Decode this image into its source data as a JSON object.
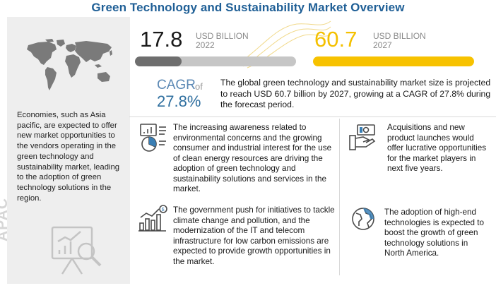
{
  "title": "Green Technology and Sustainability Market Overview",
  "left_panel": {
    "region_text": "Economies, such as Asia pacific, are expected to offer new market opportunities to the vendors operating in the green technology and sustainability market, leading to the adoption of green technology solutions in the region.",
    "region_label": "APAC"
  },
  "stats": {
    "y2022": {
      "value": "17.8",
      "unit": "USD BILLION",
      "year": "2022",
      "fill_percent": 29
    },
    "y2027": {
      "value": "60.7",
      "unit": "USD BILLION",
      "year": "2027",
      "fill_percent": 100
    }
  },
  "cagr": {
    "label": "CAGR",
    "of": "of",
    "value": "27.8%",
    "description": "The global green technology and sustainability market size is projected to reach USD 60.7 billion by 2027, growing at a CAGR of 27.8% during the forecast period."
  },
  "drivers": [
    {
      "icon": "analytics-icon",
      "text": "The increasing awareness related to environmental concerns and the growing consumer and industrial interest for the use of clean energy resources are driving the adoption of green technology and sustainability solutions and services in the market."
    },
    {
      "icon": "money-hand-icon",
      "text": "Acquisitions and new product launches would offer lucrative opportunities for the market players in next five years."
    },
    {
      "icon": "growth-chart-icon",
      "text": "The government push for initiatives to tackle climate change and pollution, and the modernization of the IT and telecom infrastructure for low carbon emissions are expected to provide growth opportunities in the market."
    },
    {
      "icon": "globe-icon",
      "text": "The adoption of high-end technologies is expected to boost the growth of green technology solutions in North America."
    }
  ],
  "colors": {
    "title": "#1f5f96",
    "accent_yellow": "#f7c200",
    "bar_gray": "#6e6e6e",
    "cagr_blue": "#2f6f9f"
  }
}
